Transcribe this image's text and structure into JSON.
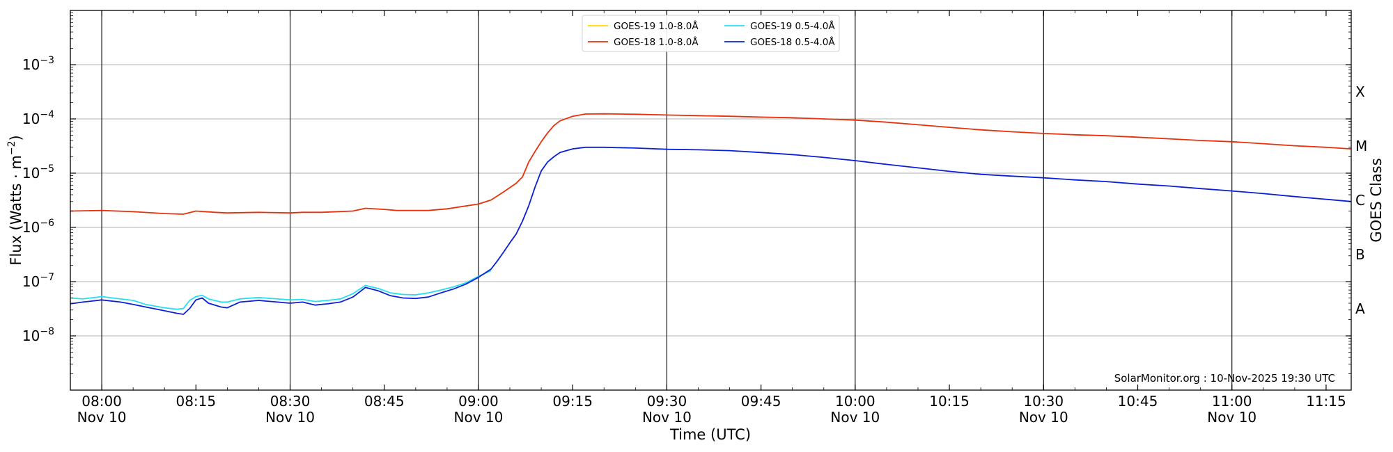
{
  "chart_data": {
    "type": "line",
    "xlabel": "Time (UTC)",
    "ylabel": "Flux (Watts · m",
    "ylabel_sup": "−2",
    "ylabel_close": ")",
    "right_label": "GOES Class",
    "credit": "SolarMonitor.org : 10-Nov-2025 19:30 UTC",
    "y_scale": "log",
    "ylim": [
      1e-09,
      0.01
    ],
    "y_ticks": [
      {
        "exp": -8,
        "base": "10",
        "sup": "−8"
      },
      {
        "exp": -7,
        "base": "10",
        "sup": "−7"
      },
      {
        "exp": -6,
        "base": "10",
        "sup": "−6"
      },
      {
        "exp": -5,
        "base": "10",
        "sup": "−5"
      },
      {
        "exp": -4,
        "base": "10",
        "sup": "−4"
      },
      {
        "exp": -3,
        "base": "10",
        "sup": "−3"
      }
    ],
    "xlim": [
      "07:55",
      "11:19"
    ],
    "x_ticks": [
      {
        "t": "08:00",
        "label": "08:00",
        "date": "Nov 10"
      },
      {
        "t": "08:15",
        "label": "08:15",
        "date": ""
      },
      {
        "t": "08:30",
        "label": "08:30",
        "date": "Nov 10"
      },
      {
        "t": "08:45",
        "label": "08:45",
        "date": ""
      },
      {
        "t": "09:00",
        "label": "09:00",
        "date": "Nov 10"
      },
      {
        "t": "09:15",
        "label": "09:15",
        "date": ""
      },
      {
        "t": "09:30",
        "label": "09:30",
        "date": "Nov 10"
      },
      {
        "t": "09:45",
        "label": "09:45",
        "date": ""
      },
      {
        "t": "10:00",
        "label": "10:00",
        "date": "Nov 10"
      },
      {
        "t": "10:15",
        "label": "10:15",
        "date": ""
      },
      {
        "t": "10:30",
        "label": "10:30",
        "date": "Nov 10"
      },
      {
        "t": "10:45",
        "label": "10:45",
        "date": ""
      },
      {
        "t": "11:00",
        "label": "11:00",
        "date": "Nov 10"
      },
      {
        "t": "11:15",
        "label": "11:15",
        "date": ""
      }
    ],
    "vertical_lines": [
      "08:00",
      "08:30",
      "09:00",
      "09:30",
      "10:00",
      "10:30",
      "11:00"
    ],
    "horizontal_grid": true,
    "goes_classes": [
      {
        "label": "A",
        "exp": -7.5
      },
      {
        "label": "B",
        "exp": -6.5
      },
      {
        "label": "C",
        "exp": -5.5
      },
      {
        "label": "M",
        "exp": -4.5
      },
      {
        "label": "X",
        "exp": -3.5
      }
    ],
    "legend_position": "top-center",
    "legend": [
      {
        "name": "GOES-19 1.0-8.0Å",
        "color": "#ffd700",
        "col": 0,
        "row": 0
      },
      {
        "name": "GOES-18 1.0-8.0Å",
        "color": "#e8300a",
        "col": 0,
        "row": 1
      },
      {
        "name": "GOES-19 0.5-4.0Å",
        "color": "#22e0f0",
        "col": 1,
        "row": 0
      },
      {
        "name": "GOES-18 0.5-4.0Å",
        "color": "#0a1fd6",
        "col": 1,
        "row": 1
      }
    ],
    "series": [
      {
        "name": "GOES-18 1.0-8.0Å",
        "color": "#e8300a",
        "points": [
          [
            "07:55",
            2e-06
          ],
          [
            "08:00",
            2.05e-06
          ],
          [
            "08:05",
            1.95e-06
          ],
          [
            "08:10",
            1.8e-06
          ],
          [
            "08:13",
            1.75e-06
          ],
          [
            "08:15",
            2e-06
          ],
          [
            "08:18",
            1.9e-06
          ],
          [
            "08:20",
            1.85e-06
          ],
          [
            "08:25",
            1.9e-06
          ],
          [
            "08:30",
            1.85e-06
          ],
          [
            "08:32",
            1.9e-06
          ],
          [
            "08:35",
            1.9e-06
          ],
          [
            "08:40",
            2e-06
          ],
          [
            "08:42",
            2.25e-06
          ],
          [
            "08:45",
            2.15e-06
          ],
          [
            "08:47",
            2.05e-06
          ],
          [
            "08:52",
            2.05e-06
          ],
          [
            "08:55",
            2.2e-06
          ],
          [
            "09:00",
            2.7e-06
          ],
          [
            "09:02",
            3.2e-06
          ],
          [
            "09:04",
            4.5e-06
          ],
          [
            "09:06",
            6.5e-06
          ],
          [
            "09:07",
            8.5e-06
          ],
          [
            "09:08",
            1.6e-05
          ],
          [
            "09:09",
            2.5e-05
          ],
          [
            "09:10",
            3.8e-05
          ],
          [
            "09:11",
            5.5e-05
          ],
          [
            "09:12",
            7.5e-05
          ],
          [
            "09:13",
            9.2e-05
          ],
          [
            "09:15",
            0.000112
          ],
          [
            "09:17",
            0.000123
          ],
          [
            "09:20",
            0.000124
          ],
          [
            "09:25",
            0.000122
          ],
          [
            "09:30",
            0.000118
          ],
          [
            "09:35",
            0.000115
          ],
          [
            "09:40",
            0.000112
          ],
          [
            "09:45",
            0.000108
          ],
          [
            "09:50",
            0.000105
          ],
          [
            "09:55",
            0.0001
          ],
          [
            "10:00",
            9.5e-05
          ],
          [
            "10:05",
            8.7e-05
          ],
          [
            "10:10",
            7.8e-05
          ],
          [
            "10:15",
            7e-05
          ],
          [
            "10:20",
            6.3e-05
          ],
          [
            "10:25",
            5.8e-05
          ],
          [
            "10:30",
            5.4e-05
          ],
          [
            "10:35",
            5.1e-05
          ],
          [
            "10:40",
            4.9e-05
          ],
          [
            "10:45",
            4.6e-05
          ],
          [
            "10:50",
            4.3e-05
          ],
          [
            "10:55",
            4e-05
          ],
          [
            "11:00",
            3.8e-05
          ],
          [
            "11:05",
            3.5e-05
          ],
          [
            "11:10",
            3.2e-05
          ],
          [
            "11:15",
            3e-05
          ],
          [
            "11:19",
            2.8e-05
          ]
        ]
      },
      {
        "name": "GOES-19 0.5-4.0Å",
        "color": "#22e0f0",
        "points": [
          [
            "07:55",
            5e-08
          ],
          [
            "07:57",
            4.8e-08
          ],
          [
            "08:00",
            5.3e-08
          ],
          [
            "08:03",
            4.8e-08
          ],
          [
            "08:05",
            4.5e-08
          ],
          [
            "08:07",
            3.8e-08
          ],
          [
            "08:10",
            3.3e-08
          ],
          [
            "08:12",
            3.1e-08
          ],
          [
            "08:13",
            3.2e-08
          ],
          [
            "08:14",
            4.5e-08
          ],
          [
            "08:15",
            5.3e-08
          ],
          [
            "08:16",
            5.6e-08
          ],
          [
            "08:17",
            4.8e-08
          ],
          [
            "08:19",
            4.2e-08
          ],
          [
            "08:20",
            4.2e-08
          ],
          [
            "08:22",
            4.8e-08
          ],
          [
            "08:25",
            5.1e-08
          ],
          [
            "08:28",
            4.8e-08
          ],
          [
            "08:30",
            4.6e-08
          ],
          [
            "08:32",
            4.7e-08
          ],
          [
            "08:34",
            4.3e-08
          ],
          [
            "08:36",
            4.5e-08
          ],
          [
            "08:38",
            4.8e-08
          ],
          [
            "08:40",
            6e-08
          ],
          [
            "08:42",
            8.5e-08
          ],
          [
            "08:44",
            7.5e-08
          ],
          [
            "08:46",
            6.2e-08
          ],
          [
            "08:48",
            5.8e-08
          ],
          [
            "08:50",
            5.7e-08
          ],
          [
            "08:52",
            6.2e-08
          ],
          [
            "08:54",
            7e-08
          ],
          [
            "08:56",
            8e-08
          ],
          [
            "08:58",
            9.5e-08
          ],
          [
            "09:00",
            1.25e-07
          ],
          [
            "09:02",
            1.6e-07
          ]
        ]
      },
      {
        "name": "GOES-18 0.5-4.0Å",
        "color": "#0a1fd6",
        "points": [
          [
            "07:55",
            3.9e-08
          ],
          [
            "07:57",
            4.2e-08
          ],
          [
            "08:00",
            4.6e-08
          ],
          [
            "08:03",
            4.2e-08
          ],
          [
            "08:05",
            3.8e-08
          ],
          [
            "08:07",
            3.4e-08
          ],
          [
            "08:10",
            2.9e-08
          ],
          [
            "08:12",
            2.6e-08
          ],
          [
            "08:13",
            2.5e-08
          ],
          [
            "08:14",
            3.2e-08
          ],
          [
            "08:15",
            4.6e-08
          ],
          [
            "08:16",
            5e-08
          ],
          [
            "08:17",
            4e-08
          ],
          [
            "08:19",
            3.4e-08
          ],
          [
            "08:20",
            3.3e-08
          ],
          [
            "08:22",
            4.2e-08
          ],
          [
            "08:25",
            4.5e-08
          ],
          [
            "08:28",
            4.2e-08
          ],
          [
            "08:30",
            4e-08
          ],
          [
            "08:32",
            4.2e-08
          ],
          [
            "08:34",
            3.7e-08
          ],
          [
            "08:36",
            3.9e-08
          ],
          [
            "08:38",
            4.2e-08
          ],
          [
            "08:40",
            5.2e-08
          ],
          [
            "08:42",
            7.8e-08
          ],
          [
            "08:44",
            6.8e-08
          ],
          [
            "08:46",
            5.5e-08
          ],
          [
            "08:48",
            5e-08
          ],
          [
            "08:50",
            4.9e-08
          ],
          [
            "08:52",
            5.2e-08
          ],
          [
            "08:54",
            6.2e-08
          ],
          [
            "08:56",
            7.3e-08
          ],
          [
            "08:58",
            9e-08
          ],
          [
            "09:00",
            1.2e-07
          ],
          [
            "09:02",
            1.7e-07
          ],
          [
            "09:03",
            2.4e-07
          ],
          [
            "09:04",
            3.5e-07
          ],
          [
            "09:05",
            5.2e-07
          ],
          [
            "09:06",
            7.5e-07
          ],
          [
            "09:07",
            1.3e-06
          ],
          [
            "09:08",
            2.5e-06
          ],
          [
            "09:09",
            5.5e-06
          ],
          [
            "09:10",
            1.1e-05
          ],
          [
            "09:11",
            1.6e-05
          ],
          [
            "09:12",
            2e-05
          ],
          [
            "09:13",
            2.4e-05
          ],
          [
            "09:15",
            2.8e-05
          ],
          [
            "09:17",
            3e-05
          ],
          [
            "09:20",
            3e-05
          ],
          [
            "09:25",
            2.9e-05
          ],
          [
            "09:30",
            2.75e-05
          ],
          [
            "09:35",
            2.7e-05
          ],
          [
            "09:40",
            2.6e-05
          ],
          [
            "09:45",
            2.4e-05
          ],
          [
            "09:50",
            2.2e-05
          ],
          [
            "09:55",
            1.95e-05
          ],
          [
            "10:00",
            1.7e-05
          ],
          [
            "10:05",
            1.45e-05
          ],
          [
            "10:10",
            1.25e-05
          ],
          [
            "10:15",
            1.08e-05
          ],
          [
            "10:20",
            9.5e-06
          ],
          [
            "10:25",
            8.8e-06
          ],
          [
            "10:30",
            8.2e-06
          ],
          [
            "10:35",
            7.5e-06
          ],
          [
            "10:40",
            7e-06
          ],
          [
            "10:45",
            6.3e-06
          ],
          [
            "10:50",
            5.8e-06
          ],
          [
            "10:55",
            5.2e-06
          ],
          [
            "11:00",
            4.7e-06
          ],
          [
            "11:05",
            4.2e-06
          ],
          [
            "11:10",
            3.7e-06
          ],
          [
            "11:15",
            3.3e-06
          ],
          [
            "11:19",
            3e-06
          ]
        ]
      }
    ]
  }
}
